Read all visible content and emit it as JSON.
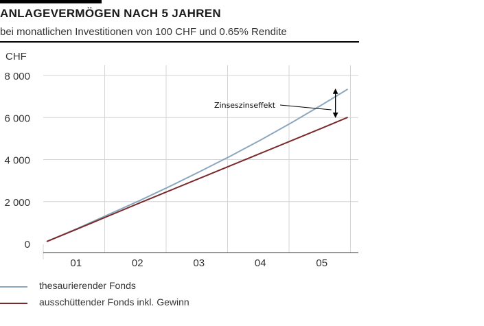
{
  "header": {
    "title": "ANLAGEVERMÖGEN NACH 5 JAHREN",
    "subtitle": "bei monatlichen Investitionen von 100 CHF und 0.65% Rendite"
  },
  "colors": {
    "series_accumulating": "#8aa7bf",
    "series_distributing": "#7a2a2a",
    "grid": "#d4d4d4",
    "axis": "#333333"
  },
  "chart_data": {
    "type": "line",
    "title": "ANLAGEVERMÖGEN NACH 5 JAHREN",
    "subtitle": "bei monatlichen Investitionen von 100 CHF und 0.65% Rendite",
    "ylabel": "CHF",
    "xlabel": "",
    "ylim": [
      0,
      8000
    ],
    "yticks": [
      0,
      2000,
      4000,
      6000,
      8000
    ],
    "ytick_labels": [
      "0",
      "2 000",
      "4 000",
      "6 000",
      "8 000"
    ],
    "xlim": [
      0,
      5
    ],
    "xtick_labels": [
      "01",
      "02",
      "03",
      "04",
      "05"
    ],
    "grid": true,
    "legend_position": "bottom-left",
    "series": [
      {
        "name": "thesaurierender Fonds",
        "color": "#8aa7bf",
        "x": [
          0,
          0.5,
          1.0,
          1.5,
          2.0,
          2.5,
          3.0,
          3.5,
          4.0,
          4.5,
          4.9
        ],
        "values": [
          100,
          720,
          1380,
          2030,
          2720,
          3440,
          4180,
          4960,
          5780,
          6640,
          7350
        ]
      },
      {
        "name": "ausschüttender Fonds inkl. Gewinn",
        "color": "#7a2a2a",
        "x": [
          0,
          0.5,
          1.0,
          1.5,
          2.0,
          2.5,
          3.0,
          3.5,
          4.0,
          4.5,
          4.9
        ],
        "values": [
          100,
          700,
          1310,
          1920,
          2520,
          3120,
          3720,
          4320,
          4920,
          5520,
          6010
        ]
      }
    ],
    "annotations": [
      {
        "text": "Zinseszinseffekt",
        "x": 4.7,
        "y_from": 6010,
        "y_to": 7350
      }
    ]
  }
}
